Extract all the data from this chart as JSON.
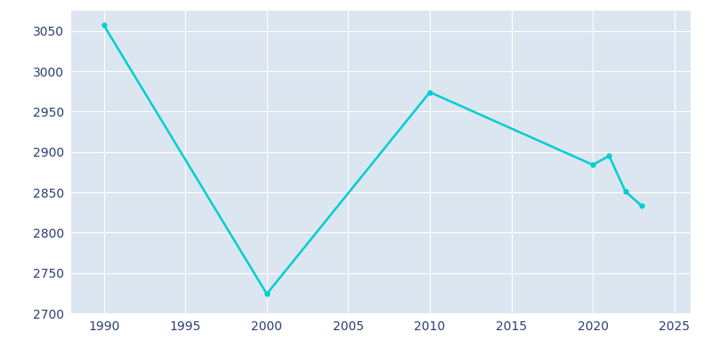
{
  "years": [
    1990,
    2000,
    2010,
    2020,
    2021,
    2022,
    2023
  ],
  "population": [
    3057,
    2724,
    2974,
    2884,
    2895,
    2851,
    2833
  ],
  "line_color": "#00CED1",
  "marker": "o",
  "marker_size": 3.5,
  "line_width": 1.8,
  "plot_bg_color": "#dce6f0",
  "fig_bg_color": "#ffffff",
  "grid_color": "#ffffff",
  "tick_label_color": "#2b3e73",
  "xlim": [
    1988,
    2026
  ],
  "ylim": [
    2700,
    3075
  ],
  "yticks": [
    2700,
    2750,
    2800,
    2850,
    2900,
    2950,
    3000,
    3050
  ],
  "xticks": [
    1990,
    1995,
    2000,
    2005,
    2010,
    2015,
    2020,
    2025
  ]
}
